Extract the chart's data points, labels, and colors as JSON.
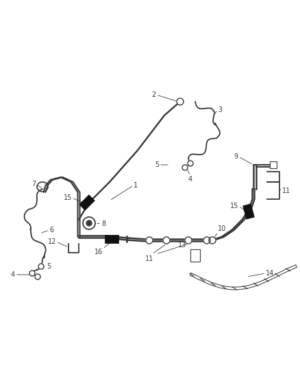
{
  "bg_color": "#ffffff",
  "line_color": "#3a3a3a",
  "label_color": "#3a3a3a",
  "label_fontsize": 7.0,
  "figsize": [
    4.38,
    5.33
  ],
  "dpi": 100
}
